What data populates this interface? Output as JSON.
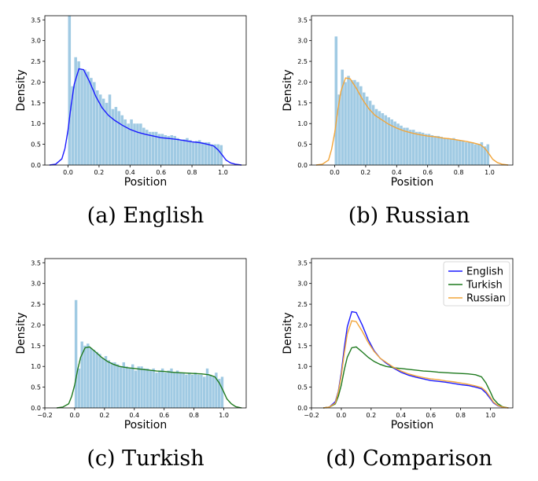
{
  "chart_data": [
    {
      "id": "english",
      "type": "bar",
      "caption": "(a) English",
      "xlabel": "Position",
      "ylabel": "Density",
      "xlim": [
        -0.15,
        1.15
      ],
      "ylim": [
        0,
        3.6
      ],
      "xticks": [
        "0.0",
        "0.2",
        "0.4",
        "0.6",
        "0.8",
        "1.0"
      ],
      "yticks": [
        "0.0",
        "0.5",
        "1.0",
        "1.5",
        "2.0",
        "2.5",
        "3.0",
        "3.5"
      ],
      "grid": false,
      "hist_color": "#8fc1de",
      "hist_bins": [
        0.0,
        1.0
      ],
      "hist_values": [
        3.6,
        1.9,
        2.6,
        2.5,
        2.3,
        2.3,
        2.25,
        2.1,
        2.0,
        1.8,
        1.7,
        1.6,
        1.5,
        1.7,
        1.35,
        1.4,
        1.3,
        1.2,
        1.1,
        1.0,
        1.1,
        1.0,
        1.0,
        1.0,
        0.9,
        0.85,
        0.8,
        0.8,
        0.8,
        0.75,
        0.75,
        0.72,
        0.7,
        0.72,
        0.7,
        0.65,
        0.6,
        0.62,
        0.65,
        0.6,
        0.55,
        0.58,
        0.6,
        0.55,
        0.55,
        0.55,
        0.5,
        0.5,
        0.5,
        0.48
      ],
      "series": [
        {
          "color": "#1a1aff",
          "x": [
            -0.12,
            -0.08,
            -0.04,
            -0.02,
            0.0,
            0.02,
            0.04,
            0.07,
            0.1,
            0.14,
            0.18,
            0.22,
            0.26,
            0.3,
            0.35,
            0.4,
            0.45,
            0.5,
            0.55,
            0.6,
            0.65,
            0.7,
            0.75,
            0.8,
            0.85,
            0.9,
            0.94,
            0.97,
            1.0,
            1.02,
            1.05,
            1.08,
            1.12
          ],
          "y": [
            0.0,
            0.02,
            0.15,
            0.4,
            0.85,
            1.45,
            1.95,
            2.32,
            2.3,
            2.0,
            1.65,
            1.38,
            1.2,
            1.08,
            0.96,
            0.86,
            0.79,
            0.74,
            0.7,
            0.66,
            0.64,
            0.62,
            0.59,
            0.56,
            0.54,
            0.5,
            0.46,
            0.36,
            0.22,
            0.12,
            0.05,
            0.02,
            0.0
          ]
        }
      ]
    },
    {
      "id": "russian",
      "type": "bar",
      "caption": "(b) Russian",
      "xlabel": "Position",
      "ylabel": "Density",
      "xlim": [
        -0.15,
        1.15
      ],
      "ylim": [
        0,
        3.6
      ],
      "xticks": [
        "0.0",
        "0.2",
        "0.4",
        "0.6",
        "0.8",
        "1.0"
      ],
      "yticks": [
        "0.0",
        "0.5",
        "1.0",
        "1.5",
        "2.0",
        "2.5",
        "3.0",
        "3.5"
      ],
      "grid": false,
      "hist_color": "#8fc1de",
      "hist_bins": [
        0.0,
        1.0
      ],
      "hist_values": [
        3.1,
        1.7,
        2.3,
        2.0,
        2.15,
        2.05,
        2.05,
        2.0,
        1.9,
        1.75,
        1.65,
        1.55,
        1.45,
        1.35,
        1.3,
        1.25,
        1.2,
        1.15,
        1.1,
        1.05,
        1.0,
        0.95,
        0.9,
        0.9,
        0.85,
        0.85,
        0.8,
        0.8,
        0.78,
        0.75,
        0.75,
        0.72,
        0.7,
        0.7,
        0.68,
        0.65,
        0.65,
        0.62,
        0.65,
        0.6,
        0.6,
        0.58,
        0.55,
        0.55,
        0.55,
        0.5,
        0.5,
        0.55,
        0.45,
        0.5
      ],
      "series": [
        {
          "color": "#f2a53a",
          "x": [
            -0.12,
            -0.08,
            -0.04,
            -0.02,
            0.0,
            0.02,
            0.04,
            0.07,
            0.1,
            0.14,
            0.18,
            0.22,
            0.26,
            0.3,
            0.35,
            0.4,
            0.45,
            0.5,
            0.55,
            0.6,
            0.65,
            0.7,
            0.75,
            0.8,
            0.85,
            0.9,
            0.94,
            0.97,
            1.0,
            1.02,
            1.05,
            1.08,
            1.12
          ],
          "y": [
            0.0,
            0.02,
            0.12,
            0.38,
            0.78,
            1.32,
            1.78,
            2.1,
            2.08,
            1.85,
            1.58,
            1.36,
            1.2,
            1.1,
            0.98,
            0.89,
            0.82,
            0.77,
            0.73,
            0.7,
            0.68,
            0.65,
            0.63,
            0.6,
            0.57,
            0.53,
            0.49,
            0.4,
            0.25,
            0.14,
            0.06,
            0.02,
            0.0
          ]
        }
      ]
    },
    {
      "id": "turkish",
      "type": "bar",
      "caption": "(c) Turkish",
      "xlabel": "Position",
      "ylabel": "Density",
      "xlim": [
        -0.2,
        1.15
      ],
      "ylim": [
        0,
        3.6
      ],
      "xticks": [
        "−0.2",
        "0.0",
        "0.2",
        "0.4",
        "0.6",
        "0.8",
        "1.0"
      ],
      "yticks": [
        "0.0",
        "0.5",
        "1.0",
        "1.5",
        "2.0",
        "2.5",
        "3.0",
        "3.5"
      ],
      "grid": false,
      "hist_color": "#8fc1de",
      "hist_bins": [
        0.0,
        1.0
      ],
      "hist_values": [
        2.6,
        0.95,
        1.6,
        1.5,
        1.55,
        1.45,
        1.4,
        1.35,
        1.3,
        1.2,
        1.25,
        1.15,
        1.1,
        1.1,
        1.05,
        1.0,
        1.1,
        1.0,
        0.95,
        1.05,
        0.9,
        1.0,
        1.0,
        0.95,
        0.95,
        0.9,
        0.95,
        0.85,
        0.9,
        0.95,
        0.85,
        0.9,
        0.95,
        0.85,
        0.9,
        0.85,
        0.85,
        0.8,
        0.85,
        0.8,
        0.85,
        0.8,
        0.8,
        0.75,
        0.95,
        0.8,
        0.75,
        0.85,
        0.7,
        0.75
      ],
      "series": [
        {
          "color": "#1f7a1f",
          "x": [
            -0.12,
            -0.08,
            -0.04,
            -0.02,
            0.0,
            0.02,
            0.04,
            0.07,
            0.1,
            0.14,
            0.18,
            0.22,
            0.26,
            0.3,
            0.35,
            0.4,
            0.45,
            0.5,
            0.55,
            0.6,
            0.65,
            0.7,
            0.75,
            0.8,
            0.85,
            0.9,
            0.94,
            0.97,
            1.0,
            1.02,
            1.05,
            1.08,
            1.12
          ],
          "y": [
            0.0,
            0.02,
            0.1,
            0.28,
            0.55,
            0.92,
            1.22,
            1.45,
            1.47,
            1.35,
            1.22,
            1.12,
            1.05,
            1.0,
            0.97,
            0.95,
            0.93,
            0.91,
            0.89,
            0.88,
            0.86,
            0.85,
            0.84,
            0.83,
            0.82,
            0.8,
            0.75,
            0.6,
            0.38,
            0.22,
            0.1,
            0.03,
            0.0
          ]
        }
      ]
    },
    {
      "id": "comparison",
      "type": "line",
      "caption": "(d) Comparison",
      "xlabel": "Position",
      "ylabel": "Density",
      "xlim": [
        -0.2,
        1.15
      ],
      "ylim": [
        0,
        3.6
      ],
      "xticks": [
        "−0.2",
        "0.0",
        "0.2",
        "0.4",
        "0.6",
        "0.8",
        "1.0"
      ],
      "yticks": [
        "0.0",
        "0.5",
        "1.0",
        "1.5",
        "2.0",
        "2.5",
        "3.0",
        "3.5"
      ],
      "grid": false,
      "legend_position": "top-right",
      "series": [
        {
          "name": "English",
          "color": "#1a1aff",
          "x": [
            -0.12,
            -0.08,
            -0.04,
            -0.02,
            0.0,
            0.02,
            0.04,
            0.07,
            0.1,
            0.14,
            0.18,
            0.22,
            0.26,
            0.3,
            0.35,
            0.4,
            0.45,
            0.5,
            0.55,
            0.6,
            0.65,
            0.7,
            0.75,
            0.8,
            0.85,
            0.9,
            0.94,
            0.97,
            1.0,
            1.02,
            1.05,
            1.08,
            1.12
          ],
          "y": [
            0.0,
            0.02,
            0.15,
            0.4,
            0.85,
            1.45,
            1.95,
            2.32,
            2.3,
            2.0,
            1.65,
            1.38,
            1.2,
            1.08,
            0.96,
            0.86,
            0.79,
            0.74,
            0.7,
            0.66,
            0.64,
            0.62,
            0.59,
            0.56,
            0.54,
            0.5,
            0.46,
            0.36,
            0.22,
            0.12,
            0.05,
            0.02,
            0.0
          ]
        },
        {
          "name": "Turkish",
          "color": "#1f7a1f",
          "x": [
            -0.12,
            -0.08,
            -0.04,
            -0.02,
            0.0,
            0.02,
            0.04,
            0.07,
            0.1,
            0.14,
            0.18,
            0.22,
            0.26,
            0.3,
            0.35,
            0.4,
            0.45,
            0.5,
            0.55,
            0.6,
            0.65,
            0.7,
            0.75,
            0.8,
            0.85,
            0.9,
            0.94,
            0.97,
            1.0,
            1.02,
            1.05,
            1.08,
            1.12
          ],
          "y": [
            0.0,
            0.02,
            0.1,
            0.28,
            0.55,
            0.92,
            1.22,
            1.45,
            1.47,
            1.35,
            1.22,
            1.12,
            1.05,
            1.0,
            0.97,
            0.95,
            0.93,
            0.91,
            0.89,
            0.88,
            0.86,
            0.85,
            0.84,
            0.83,
            0.82,
            0.8,
            0.75,
            0.6,
            0.38,
            0.22,
            0.1,
            0.03,
            0.0
          ]
        },
        {
          "name": "Russian",
          "color": "#f2a53a",
          "x": [
            -0.12,
            -0.08,
            -0.04,
            -0.02,
            0.0,
            0.02,
            0.04,
            0.07,
            0.1,
            0.14,
            0.18,
            0.22,
            0.26,
            0.3,
            0.35,
            0.4,
            0.45,
            0.5,
            0.55,
            0.6,
            0.65,
            0.7,
            0.75,
            0.8,
            0.85,
            0.9,
            0.94,
            0.97,
            1.0,
            1.02,
            1.05,
            1.08,
            1.12
          ],
          "y": [
            0.0,
            0.02,
            0.12,
            0.38,
            0.78,
            1.32,
            1.78,
            2.1,
            2.08,
            1.85,
            1.58,
            1.36,
            1.2,
            1.1,
            0.98,
            0.89,
            0.82,
            0.77,
            0.73,
            0.7,
            0.68,
            0.65,
            0.63,
            0.6,
            0.57,
            0.53,
            0.49,
            0.4,
            0.25,
            0.14,
            0.06,
            0.02,
            0.0
          ]
        }
      ]
    }
  ]
}
